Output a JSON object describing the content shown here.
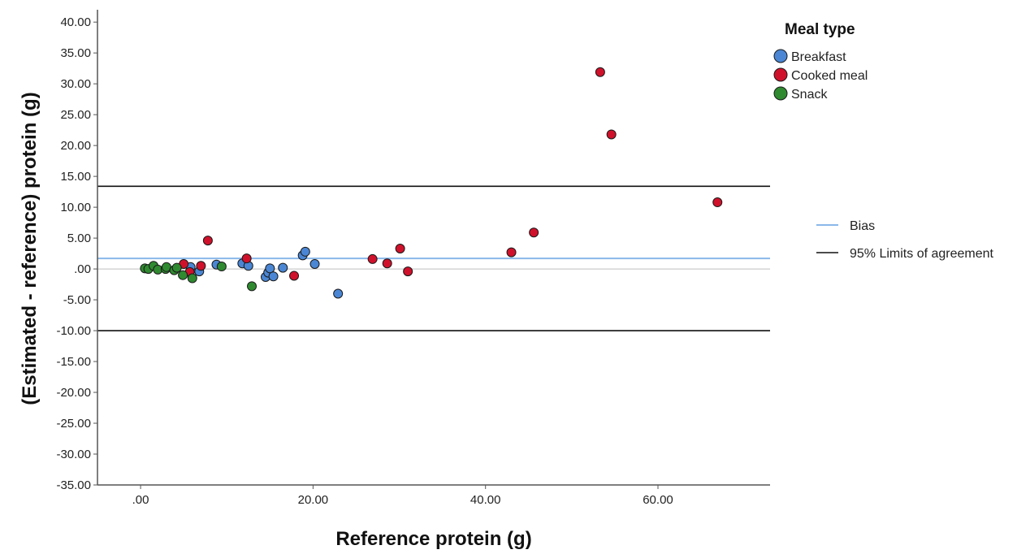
{
  "chart_data": {
    "type": "scatter",
    "xlabel": "Reference protein (g)",
    "ylabel": "(Estimated - reference) protein (g)",
    "xlim": [
      -5,
      73
    ],
    "ylim": [
      -35,
      42
    ],
    "x_ticks": [
      {
        "value": 0,
        "label": ".00"
      },
      {
        "value": 20,
        "label": "20.00"
      },
      {
        "value": 40,
        "label": "40.00"
      },
      {
        "value": 60,
        "label": "60.00"
      }
    ],
    "y_ticks": [
      {
        "value": 40,
        "label": "40.00"
      },
      {
        "value": 35,
        "label": "35.00"
      },
      {
        "value": 30,
        "label": "30.00"
      },
      {
        "value": 25,
        "label": "25.00"
      },
      {
        "value": 20,
        "label": "20.00"
      },
      {
        "value": 15,
        "label": "15.00"
      },
      {
        "value": 10,
        "label": "10.00"
      },
      {
        "value": 5,
        "label": "5.00"
      },
      {
        "value": 0,
        "label": ".00"
      },
      {
        "value": -5,
        "label": "-5.00"
      },
      {
        "value": -10,
        "label": "-10.00"
      },
      {
        "value": -15,
        "label": "-15.00"
      },
      {
        "value": -20,
        "label": "-20.00"
      },
      {
        "value": -25,
        "label": "-25.00"
      },
      {
        "value": -30,
        "label": "-30.00"
      },
      {
        "value": -35,
        "label": "-35.00"
      }
    ],
    "grid": false,
    "legend": {
      "title": "Meal type",
      "placement": "top-right",
      "lines_placement": "right"
    },
    "series": [
      {
        "name": "Breakfast",
        "color": "#4a86d4",
        "points": [
          {
            "x": 5.8,
            "y": 0.3
          },
          {
            "x": 6.8,
            "y": -0.4
          },
          {
            "x": 8.8,
            "y": 0.7
          },
          {
            "x": 11.8,
            "y": 0.9
          },
          {
            "x": 12.5,
            "y": 0.5
          },
          {
            "x": 14.5,
            "y": -1.3
          },
          {
            "x": 14.8,
            "y": -0.6
          },
          {
            "x": 15.0,
            "y": 0.1
          },
          {
            "x": 15.4,
            "y": -1.2
          },
          {
            "x": 16.5,
            "y": 0.2
          },
          {
            "x": 18.8,
            "y": 2.2
          },
          {
            "x": 19.1,
            "y": 2.8
          },
          {
            "x": 20.2,
            "y": 0.8
          },
          {
            "x": 22.9,
            "y": -4.0
          }
        ]
      },
      {
        "name": "Cooked meal",
        "color": "#d0112b",
        "points": [
          {
            "x": 5.0,
            "y": 0.8
          },
          {
            "x": 5.7,
            "y": -0.5
          },
          {
            "x": 7.0,
            "y": 0.5
          },
          {
            "x": 7.8,
            "y": 4.6
          },
          {
            "x": 12.3,
            "y": 1.7
          },
          {
            "x": 17.8,
            "y": -1.1
          },
          {
            "x": 26.9,
            "y": 1.6
          },
          {
            "x": 28.6,
            "y": 0.9
          },
          {
            "x": 30.1,
            "y": 3.3
          },
          {
            "x": 31.0,
            "y": -0.4
          },
          {
            "x": 43.0,
            "y": 2.7
          },
          {
            "x": 45.6,
            "y": 5.9
          },
          {
            "x": 53.3,
            "y": 31.9
          },
          {
            "x": 54.6,
            "y": 21.8
          },
          {
            "x": 66.9,
            "y": 10.8
          }
        ]
      },
      {
        "name": "Snack",
        "color": "#2f8a30",
        "points": [
          {
            "x": 0.5,
            "y": 0.1
          },
          {
            "x": 0.9,
            "y": 0.0
          },
          {
            "x": 1.5,
            "y": 0.5
          },
          {
            "x": 2.0,
            "y": -0.1
          },
          {
            "x": 2.9,
            "y": 0.0
          },
          {
            "x": 3.0,
            "y": 0.3
          },
          {
            "x": 3.9,
            "y": -0.2
          },
          {
            "x": 4.2,
            "y": 0.2
          },
          {
            "x": 4.9,
            "y": -1.0
          },
          {
            "x": 6.0,
            "y": -1.5
          },
          {
            "x": 9.4,
            "y": 0.4
          },
          {
            "x": 12.9,
            "y": -2.8
          }
        ]
      }
    ],
    "reference_lines": [
      {
        "name": "Bias",
        "y": 1.7,
        "color": "#8ab8ea",
        "width": 2
      },
      {
        "name": "95% Limits of agreement",
        "y": 13.4,
        "color": "#111111",
        "width": 1.6,
        "show_in_legend": true
      },
      {
        "name": "95% Limits of agreement",
        "y": -10.0,
        "color": "#111111",
        "width": 1.6,
        "show_in_legend": false
      },
      {
        "name": "zero",
        "y": 0,
        "color": "#bfbfbf",
        "width": 1,
        "show_in_legend": false
      }
    ]
  }
}
